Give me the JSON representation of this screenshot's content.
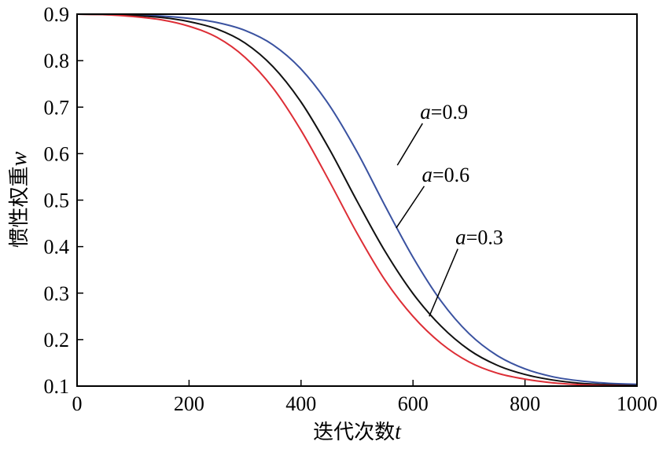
{
  "chart_data": {
    "type": "line",
    "xlabel": "迭代次数",
    "xlabel_var": "t",
    "ylabel": "惯性权重",
    "ylabel_var": "w",
    "xlim": [
      0,
      1000
    ],
    "ylim": [
      0.1,
      0.9
    ],
    "xticks": [
      0,
      200,
      400,
      600,
      800,
      1000
    ],
    "yticks": [
      0.1,
      0.2,
      0.3,
      0.4,
      0.5,
      0.6,
      0.7,
      0.8,
      0.9
    ],
    "grid": false,
    "colors": {
      "a=0.9": "#3a52a0",
      "a=0.6": "#111111",
      "a=0.3": "#dd2e36"
    },
    "x": [
      0,
      50,
      100,
      150,
      200,
      250,
      300,
      350,
      400,
      450,
      500,
      550,
      600,
      650,
      700,
      750,
      800,
      850,
      900,
      950,
      1000
    ],
    "series": [
      {
        "key": "a=0.9",
        "values": [
          0.9,
          0.9,
          0.899,
          0.896,
          0.891,
          0.882,
          0.865,
          0.834,
          0.782,
          0.705,
          0.604,
          0.488,
          0.377,
          0.283,
          0.213,
          0.166,
          0.137,
          0.12,
          0.111,
          0.106,
          0.104
        ]
      },
      {
        "key": "a=0.6",
        "values": [
          0.9,
          0.899,
          0.897,
          0.893,
          0.884,
          0.868,
          0.838,
          0.787,
          0.711,
          0.611,
          0.498,
          0.39,
          0.299,
          0.229,
          0.178,
          0.145,
          0.125,
          0.113,
          0.106,
          0.103,
          0.101
        ]
      },
      {
        "key": "a=0.3",
        "values": [
          0.9,
          0.899,
          0.895,
          0.888,
          0.874,
          0.85,
          0.807,
          0.741,
          0.65,
          0.542,
          0.429,
          0.328,
          0.25,
          0.192,
          0.152,
          0.128,
          0.115,
          0.107,
          0.103,
          0.101,
          0.1
        ]
      }
    ],
    "annotations": [
      {
        "series": "a=0.9",
        "var": "a",
        "value": "=0.9",
        "point": [
          572,
          0.575
        ],
        "label_at": [
          617,
          0.665
        ]
      },
      {
        "series": "a=0.6",
        "var": "a",
        "value": "=0.6",
        "point": [
          570,
          0.44
        ],
        "label_at": [
          620,
          0.53
        ]
      },
      {
        "series": "a=0.3",
        "var": "a",
        "value": "=0.3",
        "point": [
          629,
          0.25
        ],
        "label_at": [
          680,
          0.395
        ]
      }
    ]
  }
}
